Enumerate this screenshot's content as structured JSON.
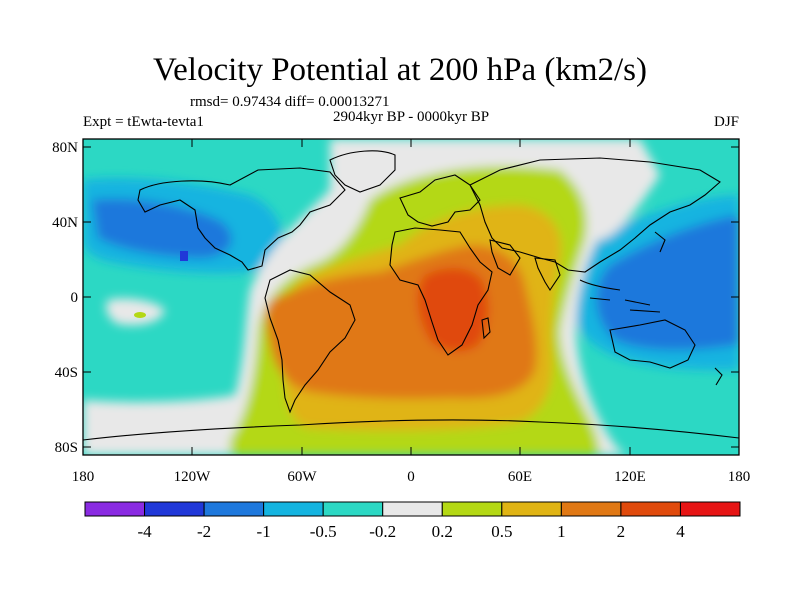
{
  "title": "Velocity Potential at 200 hPa (km2/s)",
  "stats_line": "rmsd= 0.97434 diff= 0.00013271",
  "period_line": "2904kyr BP - 0000kyr BP",
  "experiment": "Expt = tEwta-tevta1",
  "season": "DJF",
  "lat_ticks": [
    "80N",
    "40N",
    "0",
    "40S",
    "80S"
  ],
  "lon_ticks": [
    "180",
    "120W",
    "60W",
    "0",
    "60E",
    "120E",
    "180"
  ],
  "colorbar": {
    "colors": [
      "#8a2be2",
      "#2038d8",
      "#1e78dc",
      "#14b4e0",
      "#2cd8c4",
      "#e8e8e8",
      "#b4d814",
      "#e0b414",
      "#e07814",
      "#e04a0c",
      "#e61414"
    ],
    "labels": [
      "-4",
      "-2",
      "-1",
      "-0.5",
      "-0.2",
      "0.2",
      "0.5",
      "1",
      "2",
      "4"
    ]
  },
  "chart_data": {
    "type": "heatmap",
    "variable": "Velocity potential difference at 200 hPa",
    "units": "km2/s",
    "contour_levels": [
      -4,
      -2,
      -1,
      -0.5,
      -0.2,
      0.2,
      0.5,
      1,
      2,
      4
    ],
    "lon_range": [
      -180,
      180
    ],
    "lat_range": [
      -90,
      90
    ],
    "features": [
      {
        "name": "positive maximum",
        "lon": 20,
        "lat": -10,
        "level": 4
      },
      {
        "name": "positive region",
        "lon": -10,
        "lat": -20,
        "level": 2
      },
      {
        "name": "negative minimum west pacific",
        "lon": 130,
        "lat": -5,
        "level": -1
      },
      {
        "name": "negative minimum north pacific",
        "lon": -130,
        "lat": 40,
        "level": -1
      },
      {
        "name": "near-zero band east pacific",
        "lon": -95,
        "lat": 0,
        "level": 0
      },
      {
        "name": "near-zero band indian ocean",
        "lon": 82,
        "lat": 0,
        "level": 0
      }
    ]
  }
}
